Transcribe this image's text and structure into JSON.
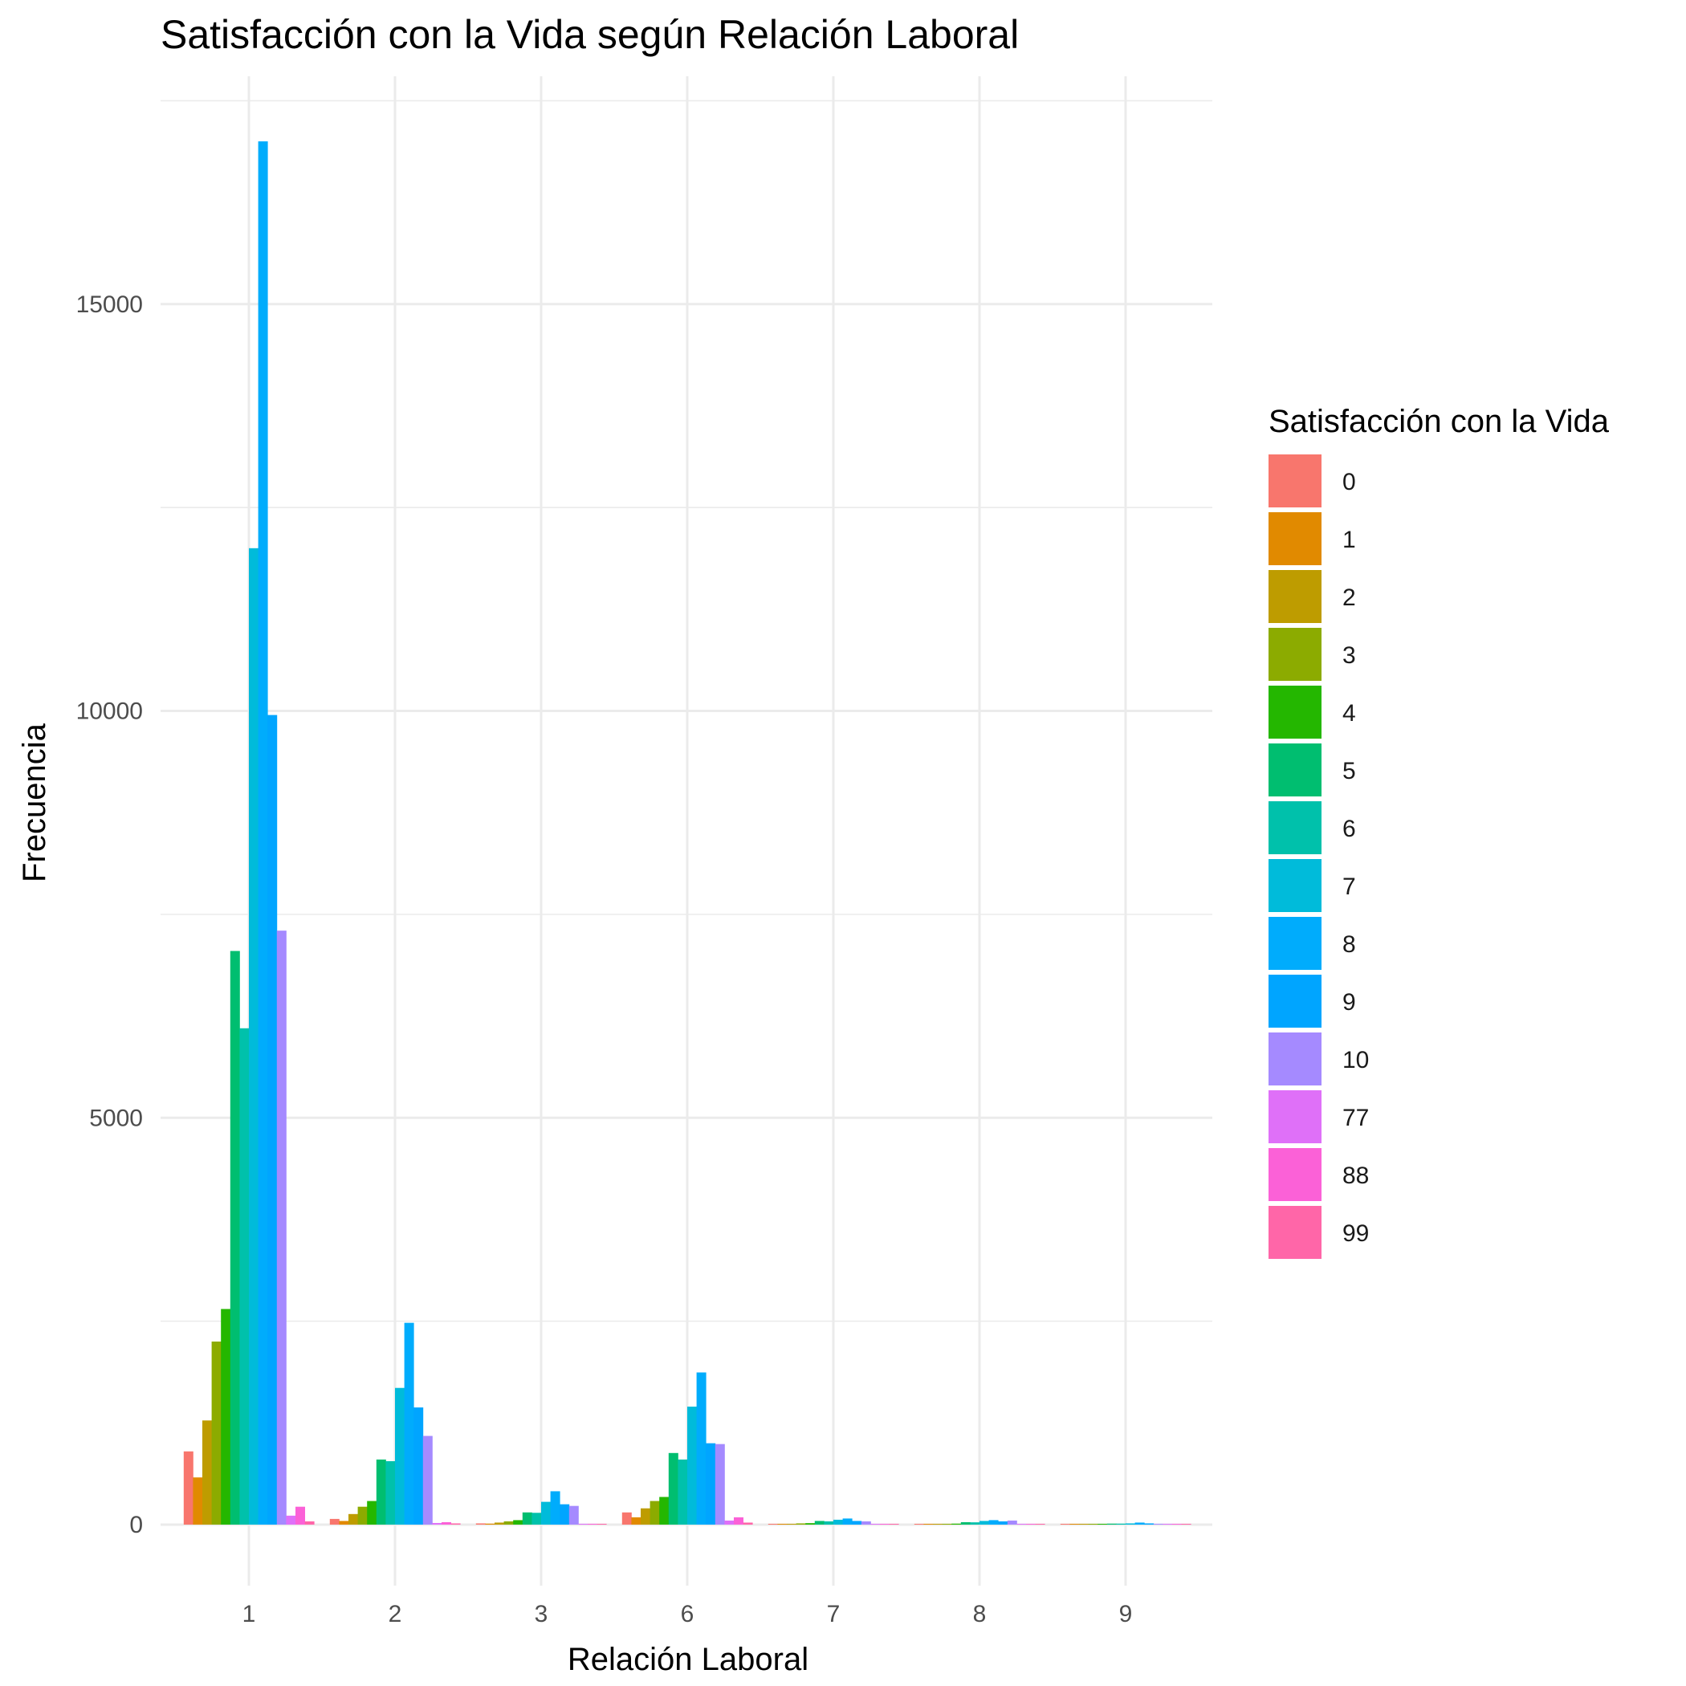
{
  "chart_data": {
    "type": "bar",
    "title": "Satisfacción con la Vida según Relación Laboral",
    "xlabel": "Relación Laboral",
    "ylabel": "Frecuencia",
    "ylim": [
      -750,
      17800
    ],
    "y_ticks": [
      0,
      5000,
      10000,
      15000
    ],
    "grid": true,
    "legend_placement": "right",
    "categories": [
      "1",
      "2",
      "3",
      "6",
      "7",
      "8",
      "9"
    ],
    "legend_title": "Satisfacción con la Vida",
    "series": [
      {
        "name": "0",
        "color": "#F8766D",
        "values": [
          900,
          70,
          15,
          150,
          8,
          6,
          4
        ]
      },
      {
        "name": "1",
        "color": "#E18A00",
        "values": [
          580,
          45,
          12,
          90,
          6,
          5,
          3
        ]
      },
      {
        "name": "2",
        "color": "#BE9C00",
        "values": [
          1280,
          130,
          25,
          200,
          10,
          8,
          5
        ]
      },
      {
        "name": "3",
        "color": "#8CAB00",
        "values": [
          2250,
          220,
          40,
          290,
          15,
          10,
          6
        ]
      },
      {
        "name": "4",
        "color": "#24B700",
        "values": [
          2650,
          290,
          55,
          340,
          18,
          12,
          7
        ]
      },
      {
        "name": "5",
        "color": "#00BE70",
        "values": [
          7050,
          800,
          150,
          880,
          45,
          30,
          12
        ]
      },
      {
        "name": "6",
        "color": "#00C1AB",
        "values": [
          6100,
          780,
          145,
          800,
          40,
          28,
          12
        ]
      },
      {
        "name": "7",
        "color": "#00BBDA",
        "values": [
          12000,
          1680,
          280,
          1450,
          60,
          45,
          15
        ]
      },
      {
        "name": "8",
        "color": "#00ACFC",
        "values": [
          17000,
          2480,
          410,
          1870,
          75,
          55,
          25
        ]
      },
      {
        "name": "9",
        "color": "#00A5FF",
        "values": [
          9950,
          1440,
          250,
          1000,
          45,
          40,
          15
        ]
      },
      {
        "name": "10",
        "color": "#A58AFF",
        "values": [
          7300,
          1090,
          230,
          990,
          40,
          50,
          10
        ]
      },
      {
        "name": "77",
        "color": "#DF70F8",
        "values": [
          110,
          20,
          10,
          50,
          5,
          4,
          3
        ]
      },
      {
        "name": "88",
        "color": "#FB61D7",
        "values": [
          220,
          30,
          10,
          90,
          5,
          4,
          3
        ]
      },
      {
        "name": "99",
        "color": "#FF66A8",
        "values": [
          40,
          15,
          5,
          25,
          3,
          3,
          2
        ]
      }
    ]
  }
}
